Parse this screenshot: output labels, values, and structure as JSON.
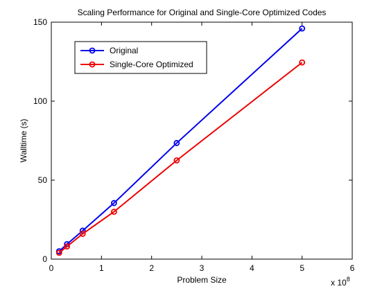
{
  "chart_data": {
    "type": "line",
    "title": "Scaling Performance for Original and Single-Core Optimized Codes",
    "xlabel": "Problem Size",
    "ylabel": "Walltime (s)",
    "x_exponent_label": "x 10",
    "x_exponent_power": "8",
    "xlim": [
      0,
      6
    ],
    "ylim": [
      0,
      150
    ],
    "x_ticks": [
      "0",
      "1",
      "2",
      "3",
      "4",
      "5",
      "6"
    ],
    "y_ticks": [
      "0",
      "50",
      "100",
      "150"
    ],
    "x_scale_multiplier": 100000000,
    "legend_position": "top-left",
    "grid": false,
    "series": [
      {
        "name": "Original",
        "color": "#0000ee",
        "marker": "circle",
        "x": [
          0.15625,
          0.3125,
          0.625,
          1.25,
          2.5,
          5.0
        ],
        "y": [
          5,
          9.5,
          18,
          35.5,
          73.5,
          146
        ]
      },
      {
        "name": "Single-Core Optimized",
        "color": "#ee0000",
        "marker": "circle",
        "x": [
          0.15625,
          0.3125,
          0.625,
          1.25,
          2.5,
          5.0
        ],
        "y": [
          4,
          8,
          16,
          30,
          62.5,
          124.5
        ]
      }
    ]
  }
}
